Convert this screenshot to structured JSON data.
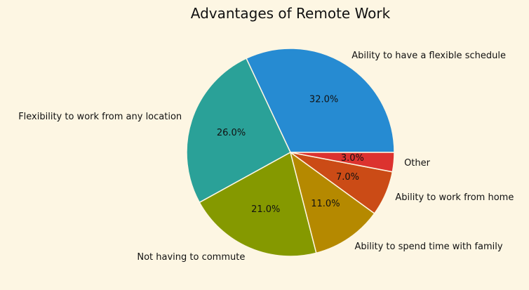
{
  "chart_data": {
    "type": "pie",
    "title": "Advantages of Remote Work",
    "categories": [
      "Ability to have a flexible schedule",
      "Flexibility to work from any location",
      "Not having to commute",
      "Ability to spend time with family",
      "Ability to work from home",
      "Other"
    ],
    "values": [
      32,
      26,
      21,
      11,
      7,
      3
    ],
    "percent_labels": [
      "32.0%",
      "26.0%",
      "21.0%",
      "11.0%",
      "7.0%",
      "3.0%"
    ],
    "colors": [
      "#268bd2",
      "#2aa198",
      "#859900",
      "#b58900",
      "#cb4b16",
      "#dc322f"
    ],
    "start_angle": "0 degrees (3 o'clock), counter-clockwise",
    "legend": "none",
    "background": "#fdf6e3"
  }
}
